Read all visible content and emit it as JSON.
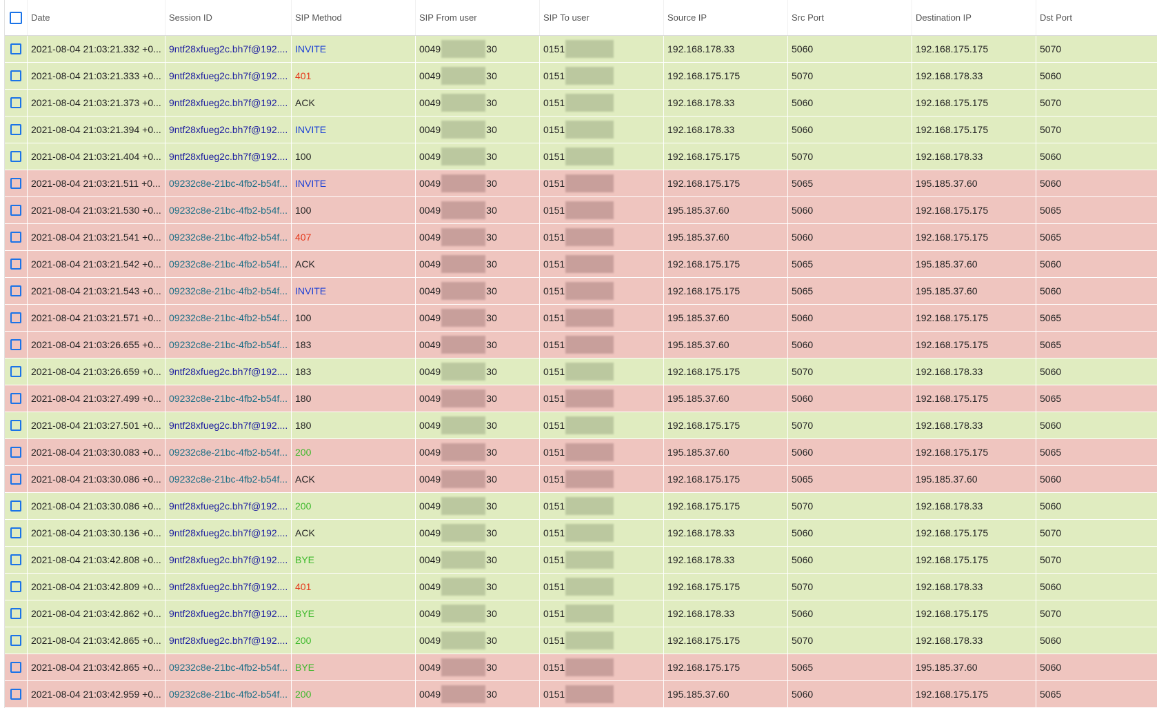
{
  "colors": {
    "green_row": "#e0ecc0",
    "red_row": "#efc5bf",
    "green_blur": "#b7c59c",
    "red_blur": "#c49b98",
    "method_invite": "#1a3fd6",
    "method_error": "#e5381b",
    "method_ok": "#3cb82a",
    "method_default": "#222222"
  },
  "header": {
    "select_all_icon": "checkbox-icon",
    "columns": [
      "Date",
      "Session ID",
      "SIP Method",
      "SIP From user",
      "SIP To user",
      "Source IP",
      "Src Port",
      "Destination IP",
      "Dst Port"
    ]
  },
  "rows": [
    {
      "group": "green",
      "date": "2021-08-04 21:03:21.332 +0...",
      "session": "9ntf28xfueg2c.bh7f@192....",
      "method": "INVITE",
      "from_prefix": "0049",
      "from_suffix": "30",
      "to_prefix": "0151",
      "src_ip": "192.168.178.33",
      "src_port": "5060",
      "dst_ip": "192.168.175.175",
      "dst_port": "5070"
    },
    {
      "group": "green",
      "date": "2021-08-04 21:03:21.333 +0...",
      "session": "9ntf28xfueg2c.bh7f@192....",
      "method": "401",
      "from_prefix": "0049",
      "from_suffix": "30",
      "to_prefix": "0151",
      "src_ip": "192.168.175.175",
      "src_port": "5070",
      "dst_ip": "192.168.178.33",
      "dst_port": "5060"
    },
    {
      "group": "green",
      "date": "2021-08-04 21:03:21.373 +0...",
      "session": "9ntf28xfueg2c.bh7f@192....",
      "method": "ACK",
      "from_prefix": "0049",
      "from_suffix": "30",
      "to_prefix": "0151",
      "src_ip": "192.168.178.33",
      "src_port": "5060",
      "dst_ip": "192.168.175.175",
      "dst_port": "5070"
    },
    {
      "group": "green",
      "date": "2021-08-04 21:03:21.394 +0...",
      "session": "9ntf28xfueg2c.bh7f@192....",
      "method": "INVITE",
      "from_prefix": "0049",
      "from_suffix": "30",
      "to_prefix": "0151",
      "src_ip": "192.168.178.33",
      "src_port": "5060",
      "dst_ip": "192.168.175.175",
      "dst_port": "5070"
    },
    {
      "group": "green",
      "date": "2021-08-04 21:03:21.404 +0...",
      "session": "9ntf28xfueg2c.bh7f@192....",
      "method": "100",
      "from_prefix": "0049",
      "from_suffix": "30",
      "to_prefix": "0151",
      "src_ip": "192.168.175.175",
      "src_port": "5070",
      "dst_ip": "192.168.178.33",
      "dst_port": "5060"
    },
    {
      "group": "red",
      "date": "2021-08-04 21:03:21.511 +0...",
      "session": "09232c8e-21bc-4fb2-b54f...",
      "method": "INVITE",
      "from_prefix": "0049",
      "from_suffix": "30",
      "to_prefix": "0151",
      "src_ip": "192.168.175.175",
      "src_port": "5065",
      "dst_ip": "195.185.37.60",
      "dst_port": "5060"
    },
    {
      "group": "red",
      "date": "2021-08-04 21:03:21.530 +0...",
      "session": "09232c8e-21bc-4fb2-b54f...",
      "method": "100",
      "from_prefix": "0049",
      "from_suffix": "30",
      "to_prefix": "0151",
      "src_ip": "195.185.37.60",
      "src_port": "5060",
      "dst_ip": "192.168.175.175",
      "dst_port": "5065"
    },
    {
      "group": "red",
      "date": "2021-08-04 21:03:21.541 +0...",
      "session": "09232c8e-21bc-4fb2-b54f...",
      "method": "407",
      "from_prefix": "0049",
      "from_suffix": "30",
      "to_prefix": "0151",
      "src_ip": "195.185.37.60",
      "src_port": "5060",
      "dst_ip": "192.168.175.175",
      "dst_port": "5065"
    },
    {
      "group": "red",
      "date": "2021-08-04 21:03:21.542 +0...",
      "session": "09232c8e-21bc-4fb2-b54f...",
      "method": "ACK",
      "from_prefix": "0049",
      "from_suffix": "30",
      "to_prefix": "0151",
      "src_ip": "192.168.175.175",
      "src_port": "5065",
      "dst_ip": "195.185.37.60",
      "dst_port": "5060"
    },
    {
      "group": "red",
      "date": "2021-08-04 21:03:21.543 +0...",
      "session": "09232c8e-21bc-4fb2-b54f...",
      "method": "INVITE",
      "from_prefix": "0049",
      "from_suffix": "30",
      "to_prefix": "0151",
      "src_ip": "192.168.175.175",
      "src_port": "5065",
      "dst_ip": "195.185.37.60",
      "dst_port": "5060"
    },
    {
      "group": "red",
      "date": "2021-08-04 21:03:21.571 +0...",
      "session": "09232c8e-21bc-4fb2-b54f...",
      "method": "100",
      "from_prefix": "0049",
      "from_suffix": "30",
      "to_prefix": "0151",
      "src_ip": "195.185.37.60",
      "src_port": "5060",
      "dst_ip": "192.168.175.175",
      "dst_port": "5065"
    },
    {
      "group": "red",
      "date": "2021-08-04 21:03:26.655 +0...",
      "session": "09232c8e-21bc-4fb2-b54f...",
      "method": "183",
      "from_prefix": "0049",
      "from_suffix": "30",
      "to_prefix": "0151",
      "src_ip": "195.185.37.60",
      "src_port": "5060",
      "dst_ip": "192.168.175.175",
      "dst_port": "5065"
    },
    {
      "group": "green",
      "date": "2021-08-04 21:03:26.659 +0...",
      "session": "9ntf28xfueg2c.bh7f@192....",
      "method": "183",
      "from_prefix": "0049",
      "from_suffix": "30",
      "to_prefix": "0151",
      "src_ip": "192.168.175.175",
      "src_port": "5070",
      "dst_ip": "192.168.178.33",
      "dst_port": "5060"
    },
    {
      "group": "red",
      "date": "2021-08-04 21:03:27.499 +0...",
      "session": "09232c8e-21bc-4fb2-b54f...",
      "method": "180",
      "from_prefix": "0049",
      "from_suffix": "30",
      "to_prefix": "0151",
      "src_ip": "195.185.37.60",
      "src_port": "5060",
      "dst_ip": "192.168.175.175",
      "dst_port": "5065"
    },
    {
      "group": "green",
      "date": "2021-08-04 21:03:27.501 +0...",
      "session": "9ntf28xfueg2c.bh7f@192....",
      "method": "180",
      "from_prefix": "0049",
      "from_suffix": "30",
      "to_prefix": "0151",
      "src_ip": "192.168.175.175",
      "src_port": "5070",
      "dst_ip": "192.168.178.33",
      "dst_port": "5060"
    },
    {
      "group": "red",
      "date": "2021-08-04 21:03:30.083 +0...",
      "session": "09232c8e-21bc-4fb2-b54f...",
      "method": "200",
      "from_prefix": "0049",
      "from_suffix": "30",
      "to_prefix": "0151",
      "src_ip": "195.185.37.60",
      "src_port": "5060",
      "dst_ip": "192.168.175.175",
      "dst_port": "5065"
    },
    {
      "group": "red",
      "date": "2021-08-04 21:03:30.086 +0...",
      "session": "09232c8e-21bc-4fb2-b54f...",
      "method": "ACK",
      "from_prefix": "0049",
      "from_suffix": "30",
      "to_prefix": "0151",
      "src_ip": "192.168.175.175",
      "src_port": "5065",
      "dst_ip": "195.185.37.60",
      "dst_port": "5060"
    },
    {
      "group": "green",
      "date": "2021-08-04 21:03:30.086 +0...",
      "session": "9ntf28xfueg2c.bh7f@192....",
      "method": "200",
      "from_prefix": "0049",
      "from_suffix": "30",
      "to_prefix": "0151",
      "src_ip": "192.168.175.175",
      "src_port": "5070",
      "dst_ip": "192.168.178.33",
      "dst_port": "5060"
    },
    {
      "group": "green",
      "date": "2021-08-04 21:03:30.136 +0...",
      "session": "9ntf28xfueg2c.bh7f@192....",
      "method": "ACK",
      "from_prefix": "0049",
      "from_suffix": "30",
      "to_prefix": "0151",
      "src_ip": "192.168.178.33",
      "src_port": "5060",
      "dst_ip": "192.168.175.175",
      "dst_port": "5070"
    },
    {
      "group": "green",
      "date": "2021-08-04 21:03:42.808 +0...",
      "session": "9ntf28xfueg2c.bh7f@192....",
      "method": "BYE",
      "from_prefix": "0049",
      "from_suffix": "30",
      "to_prefix": "0151",
      "src_ip": "192.168.178.33",
      "src_port": "5060",
      "dst_ip": "192.168.175.175",
      "dst_port": "5070"
    },
    {
      "group": "green",
      "date": "2021-08-04 21:03:42.809 +0...",
      "session": "9ntf28xfueg2c.bh7f@192....",
      "method": "401",
      "from_prefix": "0049",
      "from_suffix": "30",
      "to_prefix": "0151",
      "src_ip": "192.168.175.175",
      "src_port": "5070",
      "dst_ip": "192.168.178.33",
      "dst_port": "5060"
    },
    {
      "group": "green",
      "date": "2021-08-04 21:03:42.862 +0...",
      "session": "9ntf28xfueg2c.bh7f@192....",
      "method": "BYE",
      "from_prefix": "0049",
      "from_suffix": "30",
      "to_prefix": "0151",
      "src_ip": "192.168.178.33",
      "src_port": "5060",
      "dst_ip": "192.168.175.175",
      "dst_port": "5070"
    },
    {
      "group": "green",
      "date": "2021-08-04 21:03:42.865 +0...",
      "session": "9ntf28xfueg2c.bh7f@192....",
      "method": "200",
      "from_prefix": "0049",
      "from_suffix": "30",
      "to_prefix": "0151",
      "src_ip": "192.168.175.175",
      "src_port": "5070",
      "dst_ip": "192.168.178.33",
      "dst_port": "5060"
    },
    {
      "group": "red",
      "date": "2021-08-04 21:03:42.865 +0...",
      "session": "09232c8e-21bc-4fb2-b54f...",
      "method": "BYE",
      "from_prefix": "0049",
      "from_suffix": "30",
      "to_prefix": "0151",
      "src_ip": "192.168.175.175",
      "src_port": "5065",
      "dst_ip": "195.185.37.60",
      "dst_port": "5060"
    },
    {
      "group": "red",
      "date": "2021-08-04 21:03:42.959 +0...",
      "session": "09232c8e-21bc-4fb2-b54f...",
      "method": "200",
      "from_prefix": "0049",
      "from_suffix": "30",
      "to_prefix": "0151",
      "src_ip": "195.185.37.60",
      "src_port": "5060",
      "dst_ip": "192.168.175.175",
      "dst_port": "5065"
    }
  ]
}
